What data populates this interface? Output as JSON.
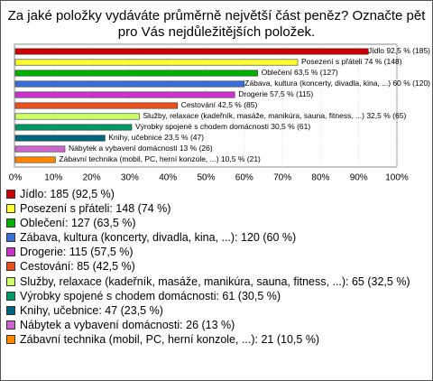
{
  "chart_data": {
    "type": "bar",
    "orientation": "horizontal",
    "title": [
      "Za jaké položky vydáváte průměrně největší část peněz? Označte pět",
      "pro Vás nejdůležitějších položek."
    ],
    "categories": [
      "Jídlo",
      "Posezení s přáteli",
      "Oblečení",
      "Zábava, kultura (koncerty, divadla, kina, ...)",
      "Drogerie",
      "Cestování",
      "Služby, relaxace (kadeřník, masáže, manikúra, sauna, fitness, ...)",
      "Výrobky spojené s chodem domácnosti",
      "Knihy, učebnice",
      "Nábytek a vybavení domácnosti",
      "Zábavní technika (mobil, PC, herní konzole, ...)"
    ],
    "values": [
      92.5,
      74,
      63.5,
      60,
      57.5,
      42.5,
      32.5,
      30.5,
      23.5,
      13,
      10.5
    ],
    "value_labels": [
      "Jídlo 92,5 % (185)",
      "Posezení s přáteli 74 % (148)",
      "Oblečení 63,5 % (127)",
      "Zábava, kultura (koncerty, divadla, kina, ...) 60 % (120)",
      "Drogerie 57,5 % (115)",
      "Cestování 42,5 % (85)",
      "Služby, relaxace (kadeřník, masáže, manikúra, sauna, fitness, ...) 32,5 % (65)",
      "Výrobky spojené s chodem domácnosti 30,5 % (61)",
      "Knihy, učebnice 23,5 % (47)",
      "Nábytek a vybavení domácnosti 13 % (26)",
      "Zábavní technika (mobil, PC, herní konzole, ...) 10,5 % (21)"
    ],
    "colors": [
      "#cc0000",
      "#ffff33",
      "#00b000",
      "#3a6fd8",
      "#cc33cc",
      "#e8501c",
      "#ccff66",
      "#009966",
      "#006680",
      "#cc66cc",
      "#ff8800"
    ],
    "legend": [
      "Jídlo: 185 (92,5 %)",
      "Posezení s přáteli: 148 (74 %)",
      "Oblečení: 127 (63,5 %)",
      "Zábava, kultura (koncerty, divadla, kina, ...): 120 (60 %)",
      "Drogerie: 115 (57,5 %)",
      "Cestování: 85 (42,5 %)",
      "Služby, relaxace (kadeřník, masáže, manikúra, sauna, fitness, ...): 65 (32,5 %)",
      "Výrobky spojené s chodem domácnosti: 61 (30,5 %)",
      "Knihy, učebnice: 47 (23,5 %)",
      "Nábytek a vybavení domácnosti: 26 (13 %)",
      "Zábavní technika (mobil, PC, herní konzole, ...): 21 (10,5 %)"
    ],
    "xlim": [
      0,
      100
    ],
    "xticks": [
      {
        "value": 0,
        "label": "0%"
      },
      {
        "value": 10,
        "label": "10%"
      },
      {
        "value": 20,
        "label": "20%"
      },
      {
        "value": 30,
        "label": "30%"
      },
      {
        "value": 40,
        "label": "40%"
      },
      {
        "value": 50,
        "label": "50%"
      },
      {
        "value": 60,
        "label": "60%"
      },
      {
        "value": 70,
        "label": "70%"
      },
      {
        "value": 80,
        "label": "80%"
      },
      {
        "value": 90,
        "label": "90%"
      },
      {
        "value": 100,
        "label": "100%"
      }
    ],
    "grid": true
  }
}
